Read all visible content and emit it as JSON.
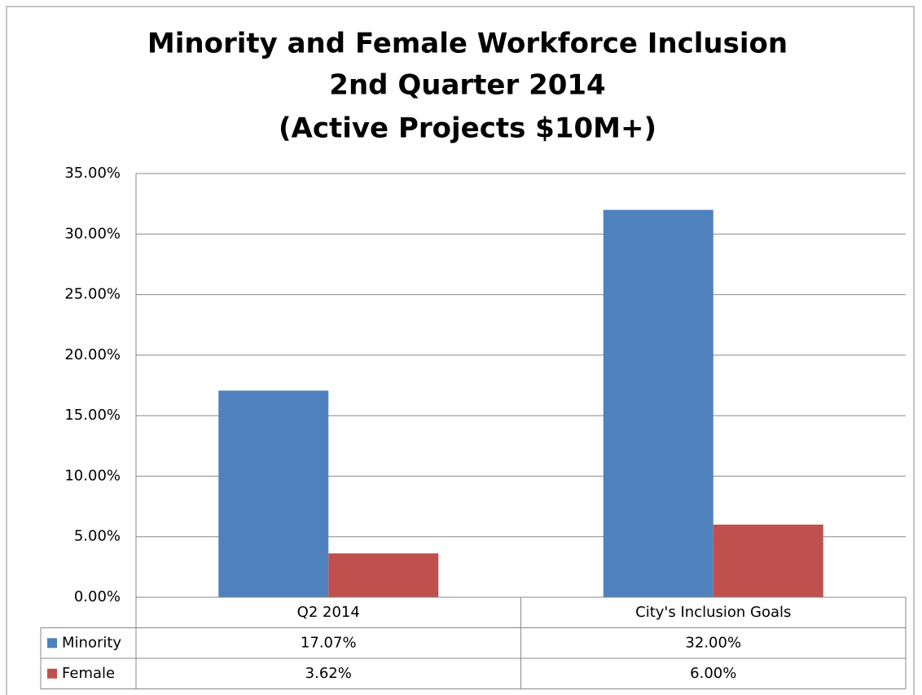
{
  "chart_data": {
    "type": "bar",
    "title": [
      "Minority and Female Workforce Inclusion",
      "2nd Quarter 2014",
      "(Active Projects $10M+)"
    ],
    "categories": [
      "Q2 2014",
      "City's Inclusion Goals"
    ],
    "series": [
      {
        "name": "Minority",
        "color": "#4f81bd",
        "values": [
          17.07,
          32.0
        ],
        "value_labels": [
          "17.07%",
          "32.00%"
        ]
      },
      {
        "name": "Female",
        "color": "#c0504d",
        "values": [
          3.62,
          6.0
        ],
        "value_labels": [
          "3.62%",
          "6.00%"
        ]
      }
    ],
    "ylim": [
      0,
      35
    ],
    "yticks": [
      {
        "value": 0,
        "label": "0.00%"
      },
      {
        "value": 5,
        "label": "5.00%"
      },
      {
        "value": 10,
        "label": "10.00%"
      },
      {
        "value": 15,
        "label": "15.00%"
      },
      {
        "value": 20,
        "label": "20.00%"
      },
      {
        "value": 25,
        "label": "25.00%"
      },
      {
        "value": 30,
        "label": "30.00%"
      },
      {
        "value": 35,
        "label": "35.00%"
      }
    ],
    "grid": true,
    "data_table": true
  }
}
